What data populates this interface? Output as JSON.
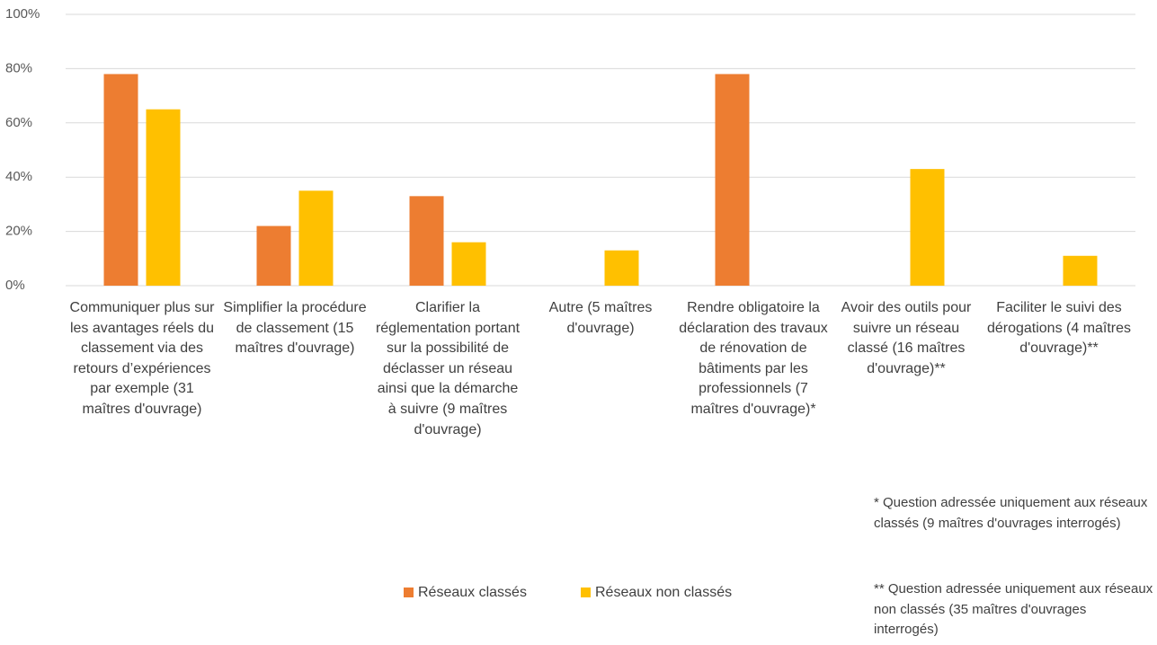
{
  "chart_data": {
    "type": "bar",
    "categories": [
      "Communiquer plus sur les avantages réels du classement via des retours d’expériences par exemple (31 maîtres d'ouvrage)",
      "Simplifier la procédure de classement (15 maîtres d'ouvrage)",
      "Clarifier la réglementation portant sur la possibilité de déclasser un réseau ainsi que la démarche à suivre (9 maîtres d'ouvrage)",
      "Autre (5 maîtres d'ouvrage)",
      "Rendre obligatoire la déclaration des travaux de rénovation de bâtiments par les professionnels (7 maîtres d'ouvrage)*",
      "Avoir des outils pour suivre un réseau classé (16 maîtres d'ouvrage)**",
      "Faciliter le suivi des dérogations (4 maîtres d'ouvrage)**"
    ],
    "series": [
      {
        "name": "Réseaux classés",
        "color": "#ed7d31",
        "values": [
          78,
          22,
          33,
          null,
          78,
          null,
          null
        ]
      },
      {
        "name": "Réseaux non classés",
        "color": "#ffc000",
        "values": [
          65,
          35,
          16,
          13,
          null,
          43,
          11
        ]
      }
    ],
    "ylim": [
      0,
      100
    ],
    "yticks": [
      {
        "value": 0,
        "label": "0%"
      },
      {
        "value": 20,
        "label": "20%"
      },
      {
        "value": 40,
        "label": "40%"
      },
      {
        "value": 60,
        "label": "60%"
      },
      {
        "value": 80,
        "label": "80%"
      },
      {
        "value": 100,
        "label": "100%"
      }
    ],
    "grid": true,
    "legend": "bottom",
    "notes": [
      "* Question adressée uniquement aux réseaux classés (9 maîtres d'ouvrages interrogés)",
      "** Question adressée uniquement aux réseaux non classés (35 maîtres d'ouvrages interrogés)"
    ]
  }
}
